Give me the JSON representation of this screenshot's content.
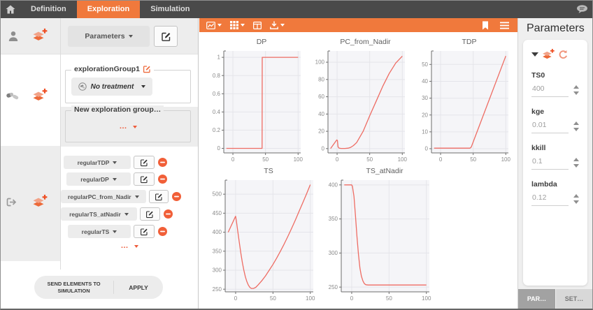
{
  "topbar": {
    "tabs": [
      {
        "label": "Definition",
        "active": false
      },
      {
        "label": "Exploration",
        "active": true
      },
      {
        "label": "Simulation",
        "active": false
      }
    ]
  },
  "left_panel": {
    "parameters_button": "Parameters",
    "group_card": {
      "name": "explorationGroup1",
      "treatment_button": "No treatment"
    },
    "new_group_card": {
      "label": "New exploration group…",
      "more_button": "…"
    },
    "outputs": {
      "items": [
        "regularTDP",
        "regularDP",
        "regularPC_from_Nadir",
        "regularTS_atNadir",
        "regularTS"
      ],
      "more_button": "…"
    },
    "footer": {
      "send_button": "SEND ELEMENTS TO SIMULATION",
      "apply_button": "APPLY"
    }
  },
  "right_panel": {
    "title": "Parameters",
    "fields": [
      {
        "label": "TS0",
        "value": "400"
      },
      {
        "label": "kge",
        "value": "0.01"
      },
      {
        "label": "kkill",
        "value": "0.1"
      },
      {
        "label": "lambda",
        "value": "0.12"
      }
    ],
    "tabs": [
      {
        "label": "PAR…",
        "active": true
      },
      {
        "label": "SET…",
        "active": false
      }
    ]
  },
  "icons": {
    "topbar": [
      "home-icon",
      "speech-bubble-icon"
    ],
    "sidebar": [
      "person-icon",
      "add-exploration-icon",
      "pills-icon",
      "export-icon",
      "edit-icon",
      "remove-icon",
      "caret-down-icon"
    ],
    "charts_toolbar": [
      "line-chart-icon",
      "grid-icon",
      "table-icon",
      "download-icon",
      "bookmark-icon",
      "menu-icon"
    ],
    "right_panel": [
      "collapse-caret-icon",
      "add-exploration-icon",
      "reset-icon",
      "stepper-up-icon",
      "stepper-down-icon"
    ]
  },
  "colors": {
    "accent": "#f0793c",
    "line": "#ee6c63",
    "topbar_bg": "#4a4a4a",
    "remove": "#f15f38"
  },
  "chart_data": [
    {
      "type": "line",
      "title": "DP",
      "grid_row": 0,
      "xlim": [
        -14,
        104
      ],
      "ylim": [
        -0.05,
        1.07
      ],
      "x_ticks": [
        0,
        50,
        100
      ],
      "y_ticks": [
        0,
        0.2,
        0.4,
        0.6,
        0.8,
        1
      ],
      "grid": true,
      "line_color": "#ee6c63",
      "points": [
        [
          -10,
          0
        ],
        [
          44.8,
          0
        ],
        [
          45,
          1
        ],
        [
          100,
          1
        ]
      ]
    },
    {
      "type": "line",
      "title": "PC_from_Nadir",
      "grid_row": 0,
      "xlim": [
        -14,
        104
      ],
      "ylim": [
        -5,
        113
      ],
      "x_ticks": [
        0,
        50,
        100
      ],
      "y_ticks": [
        0,
        20,
        40,
        60,
        80,
        100
      ],
      "grid": true,
      "line_color": "#ee6c63",
      "points": [
        [
          -10,
          0
        ],
        [
          -0.5,
          10
        ],
        [
          0.5,
          9.5
        ],
        [
          1.5,
          2
        ],
        [
          3,
          0.6
        ],
        [
          6,
          0.2
        ],
        [
          12,
          0.2
        ],
        [
          17,
          0.5
        ],
        [
          21,
          1.5
        ],
        [
          25,
          3.5
        ],
        [
          30,
          7
        ],
        [
          40,
          20
        ],
        [
          50,
          38
        ],
        [
          60,
          55
        ],
        [
          70,
          72
        ],
        [
          80,
          87
        ],
        [
          90,
          99
        ],
        [
          100,
          107
        ]
      ]
    },
    {
      "type": "line",
      "title": "TDP",
      "grid_row": 0,
      "xlim": [
        -14,
        104
      ],
      "ylim": [
        -2.5,
        58
      ],
      "x_ticks": [
        0,
        50,
        100
      ],
      "y_ticks": [
        0,
        10,
        20,
        30,
        40,
        50
      ],
      "grid": true,
      "line_color": "#ee6c63",
      "points": [
        [
          -10,
          0.3
        ],
        [
          45,
          0.3
        ],
        [
          47,
          1
        ],
        [
          100,
          55
        ]
      ]
    },
    {
      "type": "line",
      "title": "TS",
      "grid_row": 1,
      "xlim": [
        -14,
        104
      ],
      "ylim": [
        243,
        537
      ],
      "x_ticks": [
        0,
        50,
        100
      ],
      "y_ticks": [
        250,
        300,
        350,
        400,
        450,
        500
      ],
      "grid": true,
      "line_color": "#ee6c63",
      "points": [
        [
          -10,
          400
        ],
        [
          0,
          442
        ],
        [
          1,
          430
        ],
        [
          3,
          400
        ],
        [
          5,
          372
        ],
        [
          7,
          345
        ],
        [
          9,
          320
        ],
        [
          11,
          300
        ],
        [
          13,
          283
        ],
        [
          15,
          270
        ],
        [
          17,
          261
        ],
        [
          19,
          255
        ],
        [
          21,
          252
        ],
        [
          24,
          252
        ],
        [
          27,
          255
        ],
        [
          30,
          261
        ],
        [
          35,
          272
        ],
        [
          40,
          285
        ],
        [
          45,
          300
        ],
        [
          50,
          315
        ],
        [
          55,
          332
        ],
        [
          60,
          350
        ],
        [
          65,
          369
        ],
        [
          70,
          389
        ],
        [
          75,
          410
        ],
        [
          80,
          432
        ],
        [
          85,
          455
        ],
        [
          90,
          478
        ],
        [
          95,
          501
        ],
        [
          100,
          525
        ]
      ]
    },
    {
      "type": "line",
      "title": "TS_atNadir",
      "grid_row": 1,
      "xlim": [
        -14,
        104
      ],
      "ylim": [
        243,
        407
      ],
      "x_ticks": [
        0,
        50,
        100
      ],
      "y_ticks": [
        250,
        300,
        350,
        400
      ],
      "grid": true,
      "line_color": "#ee6c63",
      "points": [
        [
          -10,
          400
        ],
        [
          0,
          400
        ],
        [
          1,
          398
        ],
        [
          3,
          383
        ],
        [
          5,
          355
        ],
        [
          7,
          325
        ],
        [
          9,
          298
        ],
        [
          11,
          278
        ],
        [
          13,
          266
        ],
        [
          15,
          259
        ],
        [
          17,
          255
        ],
        [
          19,
          253.5
        ],
        [
          22,
          253
        ],
        [
          100,
          253
        ]
      ]
    }
  ]
}
